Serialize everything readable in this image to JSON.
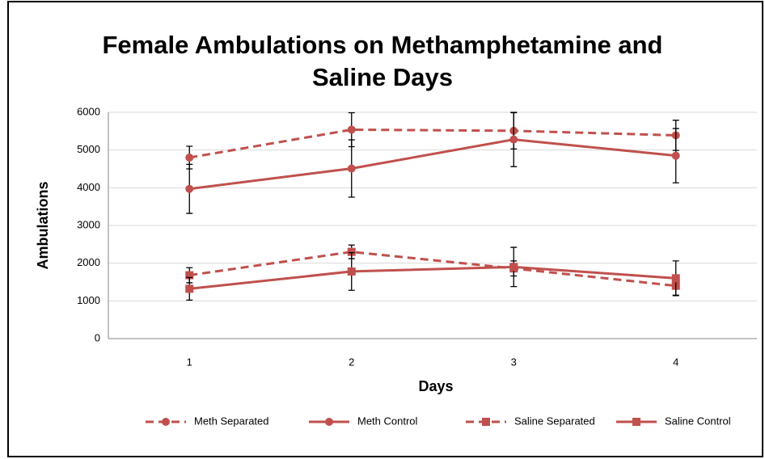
{
  "chart_data": {
    "type": "line",
    "title": "Female Ambulations on Methamphetamine and Saline Days",
    "x_label": "Days",
    "y_label": "Ambulations",
    "categories": [
      "1",
      "2",
      "3",
      "4"
    ],
    "ylim": [
      0,
      6000
    ],
    "yticks": [
      0,
      1000,
      2000,
      3000,
      4000,
      5000,
      6000
    ],
    "grid": true,
    "legend": "bottom",
    "series": [
      {
        "name": "Meth Separated",
        "color": "#c0504d",
        "dashed": true,
        "marker": "circle",
        "values": [
          4800,
          5540,
          5510,
          5390
        ],
        "errors": [
          300,
          450,
          480,
          400
        ]
      },
      {
        "name": "Meth Control",
        "color": "#c0504d",
        "dashed": false,
        "marker": "circle",
        "values": [
          3970,
          4510,
          5280,
          4850
        ],
        "errors": [
          650,
          760,
          720,
          720
        ]
      },
      {
        "name": "Saline Separated",
        "color": "#c0504d",
        "dashed": true,
        "marker": "square",
        "values": [
          1680,
          2300,
          1860,
          1400
        ],
        "errors": [
          200,
          180,
          200,
          250
        ]
      },
      {
        "name": "Saline Control",
        "color": "#c0504d",
        "dashed": false,
        "marker": "square",
        "values": [
          1320,
          1780,
          1900,
          1600
        ],
        "errors": [
          300,
          500,
          520,
          460
        ]
      }
    ]
  }
}
